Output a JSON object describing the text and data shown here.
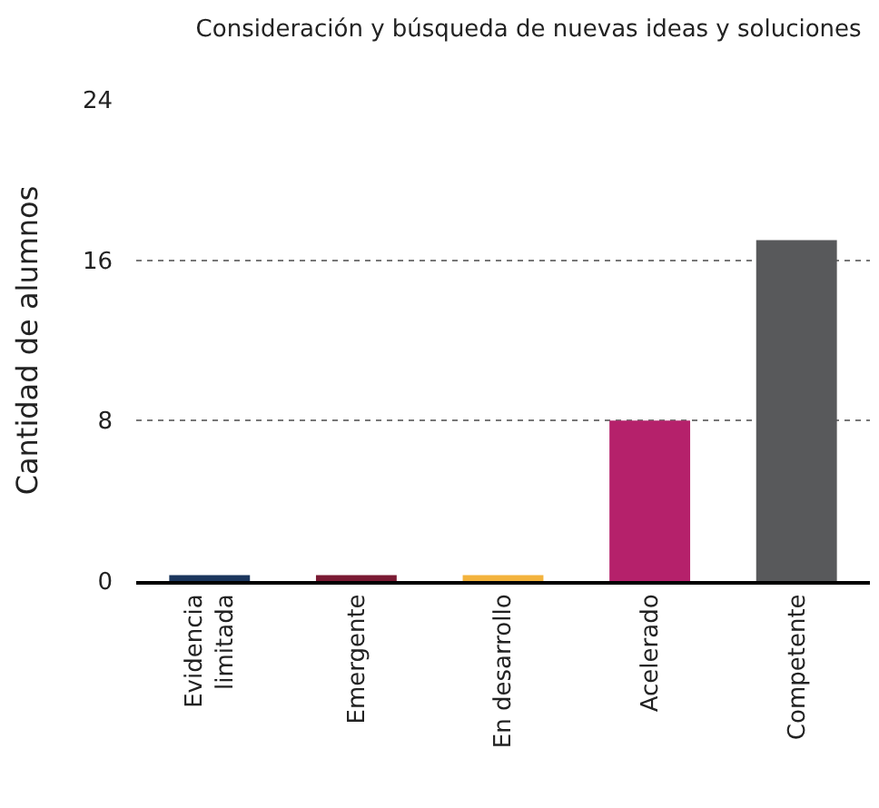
{
  "chart_data": {
    "type": "bar",
    "title": "Consideración y búsqueda de nuevas ideas y soluciones",
    "ylabel": "Cantidad de alumnos",
    "categories": [
      "Evidencia limitada",
      "Emergente",
      "En desarrollo",
      "Acelerado",
      "Competente"
    ],
    "values": [
      0.3,
      0.3,
      0.3,
      8,
      17
    ],
    "colors": [
      "#1b365d",
      "#7a1a33",
      "#f3b33d",
      "#b5216b",
      "#58595b"
    ],
    "ylim": [
      0,
      24
    ],
    "yticks": [
      0,
      8,
      16,
      24
    ],
    "grid": "y"
  }
}
